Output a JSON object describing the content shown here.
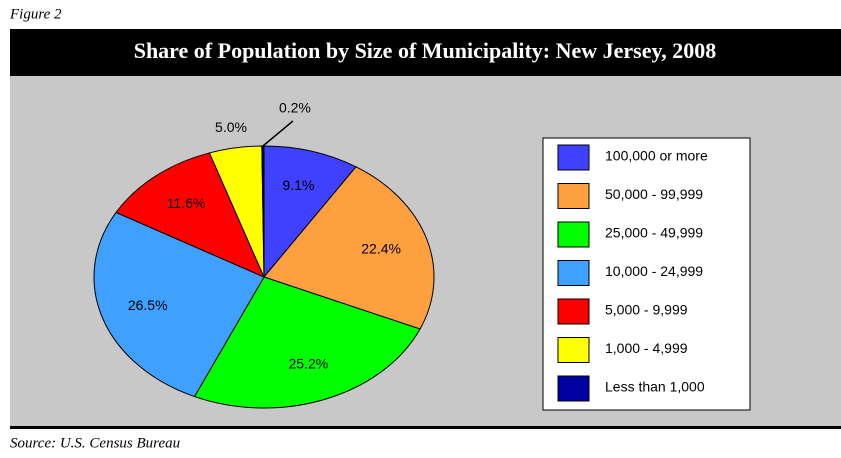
{
  "figure_label": "Figure 2",
  "source": "Source: U.S. Census Bureau",
  "chart_data": {
    "type": "pie",
    "title": "Share of Population by Size of Municipality: New Jersey, 2008",
    "categories": [
      "100,000 or more",
      "50,000 - 99,999",
      "25,000 - 49,999",
      "10,000 - 24,999",
      "5,000 - 9,999",
      "1,000 - 4,999",
      "Less than 1,000"
    ],
    "values": [
      9.1,
      22.4,
      25.2,
      26.5,
      11.6,
      5.0,
      0.2
    ],
    "value_labels": [
      "9.1%",
      "22.4%",
      "25.2%",
      "26.5%",
      "11.6%",
      "5.0%",
      "0.2%"
    ],
    "colors": [
      "#4040ff",
      "#ffa040",
      "#00ff00",
      "#40a0ff",
      "#ff0000",
      "#ffff00",
      "#0000a0"
    ],
    "legend": "right"
  }
}
